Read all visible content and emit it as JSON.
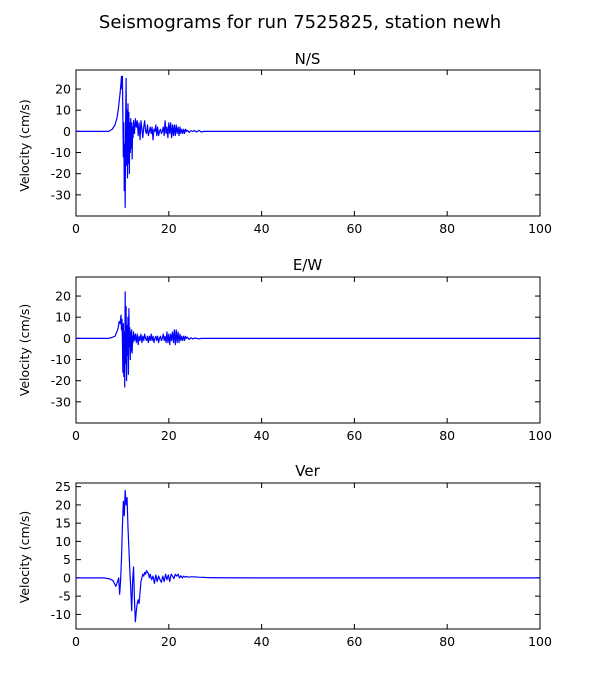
{
  "figure": {
    "title": "Seismograms for run 7525825, station newh"
  },
  "chart_data": [
    {
      "type": "line",
      "title": "N/S",
      "xlabel": "",
      "ylabel": "Velocity (cm/s)",
      "xlim": [
        0,
        100
      ],
      "ylim": [
        -40,
        29
      ],
      "x_ticks": [
        0,
        20,
        40,
        60,
        80,
        100
      ],
      "y_ticks": [
        20,
        10,
        0,
        -10,
        -20,
        -30
      ],
      "line_color": "#0000ff",
      "grid": false,
      "series": [
        {
          "x": [
            0,
            7.0,
            7.8,
            8.4,
            8.8,
            9.1,
            9.3,
            9.5,
            9.7,
            9.8,
            9.9,
            10.0,
            10.1,
            10.2,
            10.3,
            10.4,
            10.5,
            10.6,
            10.7,
            10.8,
            10.9,
            11.0,
            11.1,
            11.2,
            11.3,
            11.4,
            11.5,
            11.6,
            11.7,
            11.8,
            11.9,
            12.0,
            12.1,
            12.2,
            12.3,
            12.4,
            12.6,
            12.8,
            13.0,
            13.2,
            13.4,
            13.6,
            13.8,
            14.0,
            14.2,
            14.4,
            14.6,
            14.8,
            15.0,
            15.2,
            15.4,
            15.6,
            15.8,
            16.0,
            16.2,
            16.4,
            16.6,
            16.8,
            17.0,
            17.2,
            17.4,
            17.6,
            17.8,
            18.0,
            18.2,
            18.4,
            18.6,
            18.8,
            19.0,
            19.2,
            19.4,
            19.6,
            19.8,
            20.0,
            20.2,
            20.4,
            20.6,
            20.8,
            21.0,
            21.2,
            21.4,
            21.6,
            21.8,
            22.0,
            22.2,
            22.4,
            22.6,
            22.8,
            23.0,
            23.2,
            23.4,
            23.6,
            23.8,
            24.0,
            24.4,
            24.8,
            25.2,
            25.6,
            26.0,
            26.5,
            27.0,
            27.5,
            28.0,
            29.0,
            30.0,
            100
          ],
          "y": [
            0,
            0,
            1,
            3,
            6,
            10,
            14,
            18,
            23,
            26,
            20,
            26,
            8,
            -12,
            4,
            -28,
            -6,
            -36,
            5,
            25,
            -16,
            10,
            -22,
            13,
            -15,
            9,
            -20,
            4,
            -10,
            6,
            -8,
            4,
            -13,
            2,
            -3,
            5,
            -1,
            6,
            2,
            5,
            -2,
            4,
            -4,
            5,
            1,
            -3,
            2,
            5,
            0,
            -1,
            3,
            -2,
            0,
            2,
            -1,
            2,
            -4,
            1,
            0,
            3,
            -2,
            2,
            -2,
            0,
            1,
            -1,
            0,
            2,
            -2,
            5,
            -1,
            2,
            -3,
            4,
            -1,
            4,
            -3,
            3,
            -2,
            3,
            -2,
            3,
            -1,
            2,
            -2,
            2,
            -1,
            1,
            -1,
            1,
            -1,
            1,
            0,
            0.5,
            -0.5,
            0.3,
            0,
            0.3,
            -0.3,
            0.5,
            -0.3,
            0,
            0,
            0,
            0,
            0
          ]
        }
      ]
    },
    {
      "type": "line",
      "title": "E/W",
      "xlabel": "",
      "ylabel": "Velocity (cm/s)",
      "xlim": [
        0,
        100
      ],
      "ylim": [
        -40,
        29
      ],
      "x_ticks": [
        0,
        20,
        40,
        60,
        80,
        100
      ],
      "y_ticks": [
        20,
        10,
        0,
        -10,
        -20,
        -30
      ],
      "line_color": "#0000ff",
      "grid": false,
      "series": [
        {
          "x": [
            0,
            7.0,
            7.8,
            8.4,
            8.8,
            9.1,
            9.3,
            9.5,
            9.7,
            9.8,
            9.9,
            10.0,
            10.1,
            10.2,
            10.3,
            10.4,
            10.5,
            10.6,
            10.7,
            10.8,
            10.9,
            11.0,
            11.1,
            11.2,
            11.3,
            11.4,
            11.5,
            11.6,
            11.7,
            11.8,
            11.9,
            12.0,
            12.1,
            12.2,
            12.3,
            12.4,
            12.6,
            12.8,
            13.0,
            13.2,
            13.4,
            13.6,
            13.8,
            14.0,
            14.2,
            14.4,
            14.6,
            14.8,
            15.0,
            15.2,
            15.4,
            15.6,
            15.8,
            16.0,
            16.2,
            16.4,
            16.6,
            16.8,
            17.0,
            17.2,
            17.4,
            17.6,
            17.8,
            18.0,
            18.2,
            18.4,
            18.6,
            18.8,
            19.0,
            19.2,
            19.4,
            19.6,
            19.8,
            20.0,
            20.2,
            20.4,
            20.6,
            20.8,
            21.0,
            21.2,
            21.4,
            21.6,
            21.8,
            22.0,
            22.2,
            22.4,
            22.6,
            22.8,
            23.0,
            23.2,
            23.4,
            23.6,
            23.8,
            24.0,
            24.4,
            24.8,
            25.2,
            25.6,
            26.0,
            26.5,
            27.0,
            28.0,
            29.0,
            100
          ],
          "y": [
            0,
            0,
            0.5,
            1,
            3,
            5,
            8,
            7,
            11,
            4,
            9,
            0,
            -16,
            7,
            -18,
            3,
            -23,
            22,
            -12,
            15,
            -20,
            6,
            -8,
            10,
            -17,
            14,
            -4,
            5,
            -10,
            3,
            -6,
            4,
            -7,
            1,
            -2,
            3,
            -1,
            2,
            -2,
            2,
            -3,
            1,
            -1,
            2,
            -2,
            1,
            -1,
            2,
            0,
            -1,
            1,
            -2,
            1,
            -1,
            2,
            -1,
            1,
            -2,
            0,
            1,
            -1,
            1,
            -2,
            0,
            1,
            -1,
            0,
            2,
            -1,
            1,
            -2,
            3,
            -2,
            2,
            -3,
            2,
            -1,
            3,
            -2,
            4,
            -3,
            4,
            -2,
            3,
            -2,
            2,
            -1,
            1,
            -1,
            1,
            -1,
            1,
            0,
            0.5,
            -0.5,
            0.3,
            -0.3,
            0.2,
            0,
            -0.2,
            0,
            0,
            0,
            0
          ]
        }
      ]
    },
    {
      "type": "line",
      "title": "Ver",
      "xlabel": "",
      "ylabel": "Velocity (cm/s)",
      "xlim": [
        0,
        100
      ],
      "ylim": [
        -14,
        26
      ],
      "x_ticks": [
        0,
        20,
        40,
        60,
        80,
        100
      ],
      "y_ticks": [
        25,
        20,
        15,
        10,
        5,
        0,
        -5,
        -10
      ],
      "line_color": "#0000ff",
      "grid": false,
      "series": [
        {
          "x": [
            0,
            6.0,
            7.0,
            7.5,
            8.0,
            8.3,
            8.6,
            8.9,
            9.2,
            9.4,
            9.6,
            9.8,
            10.0,
            10.2,
            10.4,
            10.6,
            10.8,
            11.0,
            11.2,
            11.4,
            11.6,
            11.8,
            12.0,
            12.2,
            12.4,
            12.6,
            12.8,
            13.0,
            13.2,
            13.4,
            13.6,
            13.8,
            14.0,
            14.2,
            14.4,
            14.6,
            14.8,
            15.0,
            15.2,
            15.4,
            15.6,
            15.8,
            16.0,
            16.3,
            16.6,
            16.9,
            17.2,
            17.5,
            17.8,
            18.1,
            18.4,
            18.7,
            19.0,
            19.3,
            19.6,
            19.9,
            20.2,
            20.5,
            20.8,
            21.1,
            21.4,
            21.7,
            22.0,
            22.3,
            22.6,
            22.9,
            23.2,
            23.5,
            23.8,
            24.2,
            24.8,
            25.5,
            26.5,
            28.0,
            30.0,
            40.0,
            100
          ],
          "y": [
            0,
            0,
            -0.2,
            -0.4,
            -0.8,
            -1.6,
            -2.3,
            -1.2,
            0,
            -4.5,
            -1,
            5,
            14,
            21,
            17,
            24,
            20,
            22,
            14,
            8,
            2,
            -3,
            -9,
            -1,
            3,
            -6,
            -12,
            -9,
            -7,
            -6,
            -7,
            -4,
            -1,
            0,
            1,
            0.5,
            1.5,
            1,
            2,
            1.5,
            1.2,
            0,
            1,
            -0.5,
            0.5,
            -1.5,
            0.8,
            -1,
            0.5,
            -0.5,
            -1.2,
            0.5,
            -1,
            1,
            -0.5,
            0.8,
            -1,
            1,
            0.5,
            -0.2,
            1,
            0.5,
            1,
            0,
            0.6,
            0,
            0.5,
            0.2,
            0.4,
            0.2,
            0.3,
            0.3,
            0.2,
            0.1,
            0.05,
            0,
            0
          ]
        }
      ]
    }
  ]
}
